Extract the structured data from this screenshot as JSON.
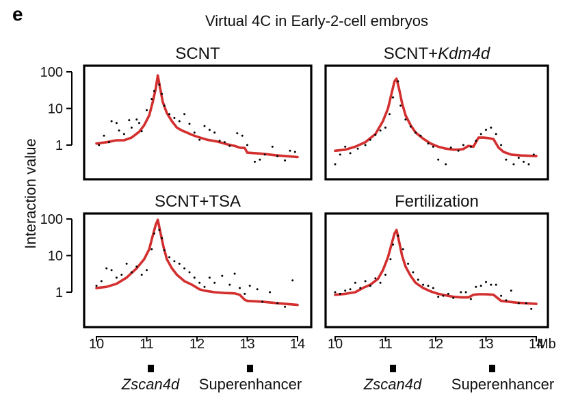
{
  "panel_letter": "e",
  "figure_title": "Virtual 4C in Early-2-cell embryos",
  "y_axis_label": "Interaction value",
  "x_unit": "Mb",
  "x_ticks": [
    "10",
    "11",
    "12",
    "13",
    "14"
  ],
  "y_ticks": [
    "1",
    "10",
    "100"
  ],
  "gene_labels": {
    "zscan": "Zscan4d",
    "superenhancer": "Superenhancer"
  },
  "colors": {
    "fit_line": "#d32f2f",
    "points": "#000000",
    "frame": "#000000"
  },
  "chart_data": [
    {
      "type": "line",
      "title": "SCNT",
      "xlim": [
        10,
        14
      ],
      "yscale": "log",
      "ylim": [
        0.25,
        150
      ],
      "markers_mb": [
        11.2,
        13.05
      ],
      "series": [
        {
          "kind": "line",
          "x": [
            10.0,
            10.2,
            10.4,
            10.55,
            10.7,
            10.85,
            10.95,
            11.05,
            11.12,
            11.18,
            11.22,
            11.26,
            11.32,
            11.4,
            11.5,
            11.6,
            11.7,
            11.8,
            11.9,
            12.0,
            12.2,
            12.4,
            12.6,
            12.75,
            12.85,
            12.95,
            13.0,
            13.3,
            13.6,
            14.0
          ],
          "y": [
            1.1,
            1.2,
            1.35,
            1.35,
            1.6,
            2.3,
            3.5,
            6.5,
            15,
            35,
            80,
            40,
            15,
            7.5,
            4.5,
            3.0,
            2.5,
            2.2,
            1.9,
            1.7,
            1.4,
            1.25,
            1.05,
            0.95,
            0.85,
            0.83,
            0.62,
            0.58,
            0.52,
            0.47
          ]
        },
        {
          "kind": "points",
          "x": [
            10.05,
            10.15,
            10.25,
            10.3,
            10.4,
            10.45,
            10.55,
            10.65,
            10.7,
            10.8,
            10.85,
            10.9,
            11.0,
            11.1,
            11.15,
            11.25,
            11.3,
            11.35,
            11.45,
            11.55,
            11.65,
            11.75,
            11.85,
            11.95,
            12.05,
            12.15,
            12.25,
            12.35,
            12.45,
            12.55,
            12.65,
            12.8,
            12.9,
            13.0,
            13.15,
            13.25,
            13.35,
            13.5,
            13.6,
            13.75,
            13.85,
            13.95
          ],
          "y": [
            1.0,
            1.8,
            1.2,
            4.5,
            4.0,
            2.5,
            2.0,
            4.8,
            3.0,
            5.0,
            4.0,
            2.4,
            9.0,
            18,
            30,
            45,
            25,
            12,
            7.0,
            5.5,
            4.5,
            7.0,
            3.8,
            2.2,
            1.4,
            3.3,
            2.6,
            2.2,
            1.3,
            1.2,
            0.95,
            2.1,
            1.8,
            1.0,
            0.35,
            0.4,
            0.55,
            0.9,
            0.5,
            0.38,
            0.7,
            0.65
          ]
        }
      ]
    },
    {
      "type": "line",
      "title": "SCNT+",
      "title_italic": "Kdm4d",
      "xlim": [
        10,
        14
      ],
      "yscale": "log",
      "ylim": [
        0.25,
        150
      ],
      "series": [
        {
          "kind": "line",
          "x": [
            10.0,
            10.2,
            10.4,
            10.6,
            10.8,
            10.95,
            11.05,
            11.12,
            11.18,
            11.22,
            11.27,
            11.33,
            11.4,
            11.5,
            11.6,
            11.75,
            11.9,
            12.05,
            12.2,
            12.35,
            12.45,
            12.55,
            12.65,
            12.75,
            12.85,
            12.95,
            13.05,
            13.15,
            13.25,
            13.35,
            13.5,
            13.7,
            14.0
          ],
          "y": [
            0.7,
            0.75,
            0.9,
            1.2,
            2.0,
            4.5,
            10,
            25,
            55,
            65,
            35,
            14,
            6.5,
            3.5,
            2.2,
            1.5,
            1.1,
            0.9,
            0.8,
            0.75,
            0.75,
            0.78,
            0.95,
            0.9,
            1.6,
            1.6,
            1.55,
            1.45,
            0.85,
            0.65,
            0.55,
            0.52,
            0.5
          ]
        },
        {
          "kind": "points",
          "x": [
            10.0,
            10.1,
            10.2,
            10.3,
            10.45,
            10.6,
            10.7,
            10.8,
            10.9,
            11.0,
            11.08,
            11.15,
            11.25,
            11.3,
            11.4,
            11.5,
            11.6,
            11.7,
            11.85,
            11.95,
            12.05,
            12.2,
            12.3,
            12.45,
            12.55,
            12.7,
            12.8,
            12.9,
            13.0,
            13.1,
            13.2,
            13.3,
            13.4,
            13.55,
            13.65,
            13.75,
            13.85,
            13.95
          ],
          "y": [
            0.3,
            0.55,
            0.9,
            0.6,
            0.8,
            1.0,
            1.4,
            1.9,
            2.5,
            3.0,
            7.0,
            20,
            55,
            12,
            5.0,
            3.2,
            2.2,
            1.8,
            1.1,
            0.9,
            0.4,
            0.3,
            0.85,
            0.7,
            1.0,
            0.9,
            1.3,
            2.0,
            2.6,
            3.0,
            2.0,
            1.0,
            0.4,
            0.3,
            0.45,
            0.35,
            0.3,
            0.55
          ]
        }
      ]
    },
    {
      "type": "line",
      "title": "SCNT+TSA",
      "xlim": [
        10,
        14
      ],
      "yscale": "log",
      "ylim": [
        0.25,
        150
      ],
      "series": [
        {
          "kind": "line",
          "x": [
            10.0,
            10.2,
            10.4,
            10.6,
            10.8,
            10.95,
            11.05,
            11.12,
            11.18,
            11.22,
            11.27,
            11.33,
            11.4,
            11.5,
            11.6,
            11.75,
            11.9,
            12.05,
            12.15,
            12.35,
            12.55,
            12.75,
            12.85,
            12.95,
            13.0,
            13.3,
            13.6,
            14.0
          ],
          "y": [
            1.3,
            1.4,
            1.7,
            2.5,
            4.5,
            8.0,
            15,
            35,
            70,
            95,
            45,
            18,
            8.0,
            4.5,
            3.0,
            2.0,
            1.6,
            1.2,
            1.1,
            1.0,
            0.95,
            0.93,
            0.85,
            0.62,
            0.58,
            0.55,
            0.5,
            0.45
          ]
        },
        {
          "kind": "points",
          "x": [
            10.0,
            10.1,
            10.2,
            10.3,
            10.4,
            10.5,
            10.6,
            10.7,
            10.8,
            10.9,
            11.0,
            11.1,
            11.15,
            11.25,
            11.3,
            11.35,
            11.45,
            11.55,
            11.65,
            11.75,
            11.85,
            11.95,
            12.05,
            12.15,
            12.25,
            12.35,
            12.5,
            12.65,
            12.75,
            12.85,
            12.95,
            13.05,
            13.2,
            13.3,
            13.45,
            13.6,
            13.75,
            13.9
          ],
          "y": [
            1.5,
            2.0,
            4.5,
            4.0,
            2.5,
            3.0,
            6.0,
            3.5,
            5.0,
            3.0,
            4.0,
            15,
            40,
            50,
            30,
            14,
            9.0,
            7.0,
            6.0,
            4.5,
            3.5,
            2.5,
            1.8,
            1.4,
            2.5,
            1.8,
            2.8,
            1.6,
            3.2,
            1.3,
            0.9,
            1.5,
            1.2,
            0.55,
            1.0,
            0.5,
            0.4,
            2.1
          ]
        }
      ]
    },
    {
      "type": "line",
      "title": "Fertilization",
      "xlim": [
        10,
        14
      ],
      "yscale": "log",
      "ylim": [
        0.25,
        150
      ],
      "series": [
        {
          "kind": "line",
          "x": [
            10.0,
            10.2,
            10.4,
            10.55,
            10.7,
            10.85,
            10.95,
            11.05,
            11.12,
            11.18,
            11.22,
            11.27,
            11.33,
            11.4,
            11.5,
            11.6,
            11.75,
            11.9,
            12.05,
            12.2,
            12.35,
            12.5,
            12.65,
            12.75,
            12.85,
            12.95,
            13.05,
            13.15,
            13.3,
            13.6,
            14.0
          ],
          "y": [
            0.85,
            0.9,
            1.0,
            1.3,
            1.6,
            2.3,
            4.0,
            9.0,
            20,
            40,
            50,
            25,
            10,
            5.0,
            2.8,
            1.8,
            1.3,
            1.05,
            0.9,
            0.82,
            0.75,
            0.72,
            0.72,
            0.85,
            0.88,
            0.88,
            0.87,
            0.85,
            0.58,
            0.52,
            0.48
          ]
        },
        {
          "kind": "points",
          "x": [
            10.0,
            10.1,
            10.2,
            10.3,
            10.4,
            10.5,
            10.6,
            10.7,
            10.8,
            10.9,
            11.0,
            11.1,
            11.15,
            11.25,
            11.35,
            11.45,
            11.55,
            11.65,
            11.75,
            11.85,
            11.95,
            12.05,
            12.15,
            12.25,
            12.35,
            12.5,
            12.6,
            12.7,
            12.8,
            12.9,
            13.0,
            13.1,
            13.2,
            13.3,
            13.4,
            13.5,
            13.65,
            13.8,
            13.9
          ],
          "y": [
            1.0,
            0.9,
            1.1,
            1.2,
            1.8,
            1.3,
            2.0,
            1.5,
            2.4,
            1.8,
            3.0,
            8.0,
            20,
            35,
            15,
            6.0,
            3.5,
            2.2,
            1.6,
            1.5,
            1.3,
            0.75,
            0.8,
            0.9,
            0.7,
            1.0,
            1.0,
            0.65,
            1.4,
            1.5,
            1.9,
            1.6,
            1.6,
            0.8,
            0.6,
            1.1,
            0.5,
            0.5,
            0.35
          ]
        }
      ]
    }
  ]
}
